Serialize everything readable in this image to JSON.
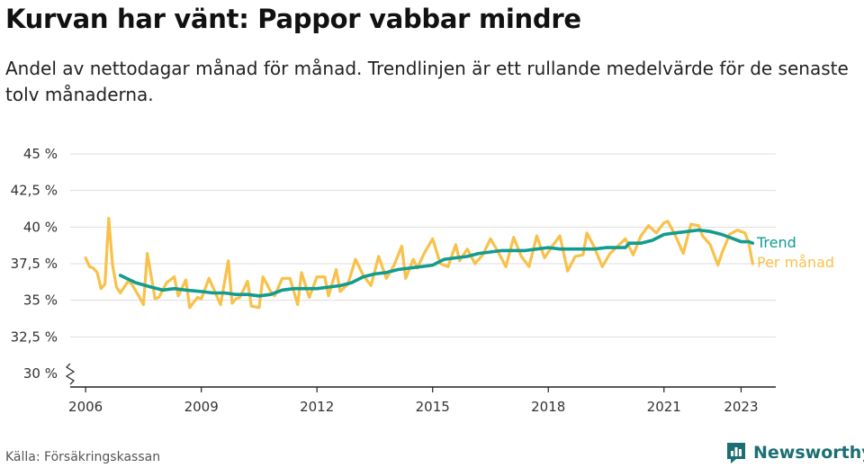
{
  "title": "Kurvan har vänt: Pappor vabbar mindre",
  "subtitle": "Andel av nettodagar månad för månad. Trendlinjen är ett rullande medelvärde för de senaste tolv månaderna.",
  "source": "Källa: Försäkringskassan",
  "brand": {
    "name": "Newsworthy",
    "icon": "newsworthy-logo-icon"
  },
  "colors": {
    "trend": "#119c8f",
    "monthly": "#f8c14a",
    "grid": "#dddddd",
    "text": "#333333"
  },
  "chart_data": {
    "type": "line",
    "title": "Kurvan har vänt: Pappor vabbar mindre",
    "xlabel": "",
    "ylabel": "",
    "x_ticks": [
      2006,
      2009,
      2012,
      2015,
      2018,
      2021,
      2023
    ],
    "x_tick_labels": [
      "2006",
      "2009",
      "2012",
      "2015",
      "2018",
      "2021",
      "2023"
    ],
    "y_ticks": [
      30,
      32.5,
      35,
      37.5,
      40,
      42.5,
      45
    ],
    "y_tick_labels": [
      "30 %",
      "32,5 %",
      "35 %",
      "37,5 %",
      "40 %",
      "42,5 %",
      "45 %"
    ],
    "xlim": [
      2005.6,
      2023.9
    ],
    "ylim": [
      30,
      45
    ],
    "y_axis_break": true,
    "grid": true,
    "legend": "right end of lines",
    "series": [
      {
        "name": "Trend",
        "x": [
          2006.9,
          2007.3,
          2007.7,
          2008.0,
          2008.3,
          2008.6,
          2009.0,
          2009.3,
          2009.6,
          2009.9,
          2010.2,
          2010.5,
          2010.8,
          2011.1,
          2011.4,
          2011.7,
          2012.0,
          2012.3,
          2012.6,
          2012.9,
          2013.2,
          2013.5,
          2013.8,
          2014.1,
          2014.4,
          2014.7,
          2015.0,
          2015.3,
          2015.6,
          2015.9,
          2016.2,
          2016.5,
          2016.8,
          2017.1,
          2017.4,
          2017.7,
          2018.0,
          2018.3,
          2018.6,
          2018.9,
          2019.2,
          2019.5,
          2019.8,
          2020.0,
          2020.1,
          2020.4,
          2020.7,
          2021.0,
          2021.3,
          2021.6,
          2021.9,
          2022.2,
          2022.5,
          2022.8,
          2023.0,
          2023.2,
          2023.3
        ],
        "values": [
          36.7,
          36.2,
          35.9,
          35.7,
          35.8,
          35.7,
          35.6,
          35.5,
          35.5,
          35.4,
          35.4,
          35.3,
          35.4,
          35.7,
          35.8,
          35.8,
          35.8,
          35.9,
          36.0,
          36.2,
          36.6,
          36.8,
          36.9,
          37.1,
          37.2,
          37.3,
          37.4,
          37.8,
          37.9,
          38.0,
          38.2,
          38.3,
          38.4,
          38.4,
          38.4,
          38.5,
          38.6,
          38.5,
          38.5,
          38.5,
          38.5,
          38.6,
          38.6,
          38.6,
          38.9,
          38.9,
          39.1,
          39.5,
          39.6,
          39.7,
          39.8,
          39.7,
          39.5,
          39.2,
          39.0,
          39.0,
          38.9
        ]
      },
      {
        "name": "Per månad",
        "x": [
          2006.0,
          2006.1,
          2006.2,
          2006.3,
          2006.4,
          2006.5,
          2006.6,
          2006.7,
          2006.8,
          2006.9,
          2007.1,
          2007.2,
          2007.4,
          2007.5,
          2007.6,
          2007.8,
          2007.9,
          2008.1,
          2008.3,
          2008.4,
          2008.6,
          2008.7,
          2008.9,
          2009.0,
          2009.2,
          2009.3,
          2009.5,
          2009.7,
          2009.8,
          2009.9,
          2010.0,
          2010.2,
          2010.3,
          2010.5,
          2010.6,
          2010.8,
          2010.9,
          2011.1,
          2011.3,
          2011.5,
          2011.6,
          2011.8,
          2012.0,
          2012.2,
          2012.3,
          2012.5,
          2012.6,
          2012.8,
          2013.0,
          2013.2,
          2013.4,
          2013.6,
          2013.8,
          2014.0,
          2014.2,
          2014.3,
          2014.5,
          2014.6,
          2014.8,
          2015.0,
          2015.2,
          2015.4,
          2015.6,
          2015.7,
          2015.9,
          2016.1,
          2016.3,
          2016.5,
          2016.7,
          2016.9,
          2017.1,
          2017.3,
          2017.5,
          2017.7,
          2017.9,
          2018.1,
          2018.3,
          2018.5,
          2018.7,
          2018.9,
          2019.0,
          2019.2,
          2019.4,
          2019.6,
          2019.8,
          2020.0,
          2020.2,
          2020.4,
          2020.6,
          2020.8,
          2021.0,
          2021.1,
          2021.3,
          2021.5,
          2021.7,
          2021.9,
          2022.0,
          2022.2,
          2022.4,
          2022.5,
          2022.7,
          2022.9,
          2023.1,
          2023.2,
          2023.3
        ],
        "values": [
          37.9,
          37.3,
          37.2,
          36.9,
          35.8,
          36.1,
          40.6,
          37.4,
          35.9,
          35.5,
          36.3,
          36.1,
          35.2,
          34.7,
          38.2,
          35.1,
          35.2,
          36.2,
          36.6,
          35.3,
          36.4,
          34.5,
          35.2,
          35.1,
          36.5,
          35.9,
          34.7,
          37.7,
          34.8,
          35.1,
          35.2,
          36.3,
          34.6,
          34.5,
          36.6,
          35.6,
          35.3,
          36.5,
          36.5,
          34.7,
          36.9,
          35.2,
          36.6,
          36.6,
          35.3,
          37.1,
          35.6,
          36.1,
          37.8,
          36.7,
          36.0,
          38.0,
          36.5,
          37.4,
          38.7,
          36.5,
          37.8,
          37.2,
          38.3,
          39.2,
          37.5,
          37.3,
          38.8,
          37.7,
          38.5,
          37.5,
          38.1,
          39.2,
          38.3,
          37.3,
          39.3,
          38.0,
          37.3,
          39.4,
          37.9,
          38.7,
          39.4,
          37.0,
          38.0,
          38.1,
          39.6,
          38.6,
          37.3,
          38.2,
          38.7,
          39.2,
          38.1,
          39.4,
          40.1,
          39.6,
          40.3,
          40.4,
          39.4,
          38.2,
          40.2,
          40.1,
          39.4,
          38.8,
          37.4,
          38.2,
          39.5,
          39.8,
          39.6,
          38.9,
          37.5
        ]
      }
    ]
  }
}
